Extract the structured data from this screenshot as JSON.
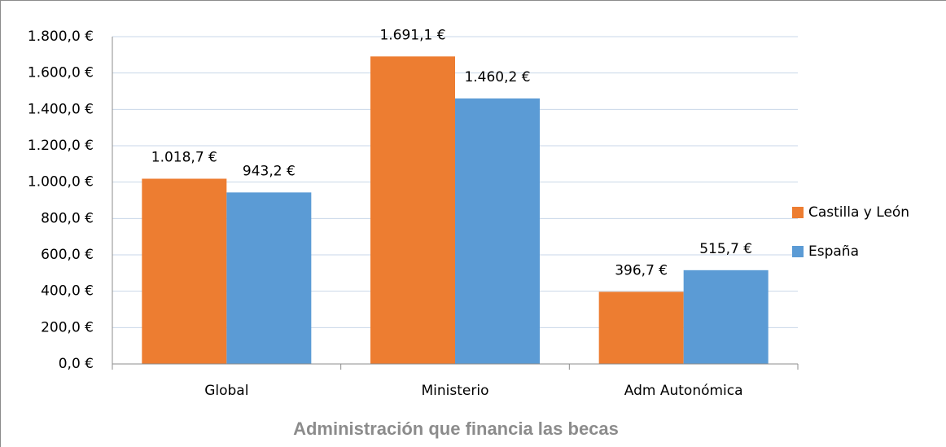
{
  "chart_data": {
    "type": "bar",
    "x_label": "Administración que financia las becas",
    "categories": [
      "Global",
      "Ministerio",
      "Adm Autonómica"
    ],
    "series": [
      {
        "name": "Castilla y León",
        "color": "#ed7d31",
        "values": [
          1018.7,
          1691.1,
          396.7
        ],
        "value_labels": [
          "1.018,7 €",
          "1.691,1 €",
          "396,7 €"
        ]
      },
      {
        "name": "España",
        "color": "#5b9bd5",
        "values": [
          943.2,
          1460.2,
          515.7
        ],
        "value_labels": [
          "943,2 €",
          "1.460,2 €",
          "515,7 €"
        ]
      }
    ],
    "ylim": [
      0,
      1800
    ],
    "yticks": [
      {
        "value": 0,
        "label": "0,0 €"
      },
      {
        "value": 200,
        "label": "200,0 €"
      },
      {
        "value": 400,
        "label": "400,0 €"
      },
      {
        "value": 600,
        "label": "600,0 €"
      },
      {
        "value": 800,
        "label": "800,0 €"
      },
      {
        "value": 1000,
        "label": "1.000,0 €"
      },
      {
        "value": 1200,
        "label": "1.200,0 €"
      },
      {
        "value": 1400,
        "label": "1.400,0 €"
      },
      {
        "value": 1600,
        "label": "1.600,0 €"
      },
      {
        "value": 1800,
        "label": "1.800,0 €"
      }
    ],
    "grid": true,
    "legend": "right"
  }
}
